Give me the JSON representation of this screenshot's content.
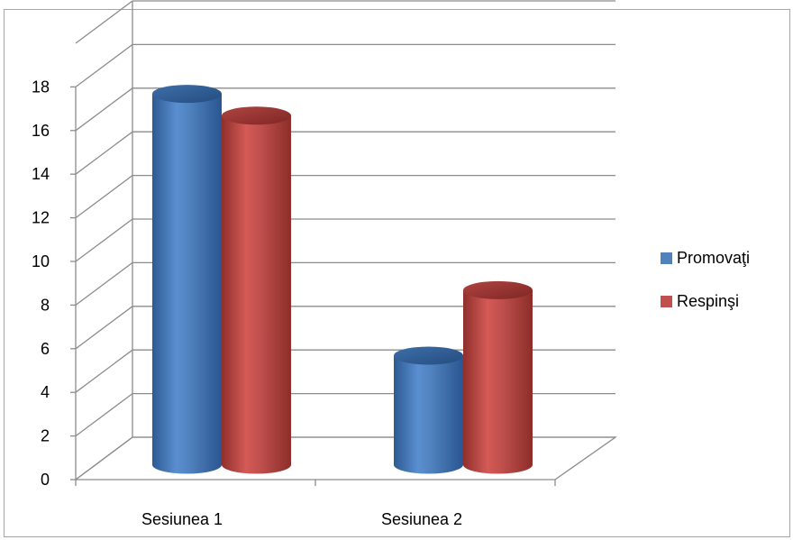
{
  "chart_data": {
    "type": "bar",
    "style": "3d-cylinder",
    "categories": [
      "Sesiunea 1",
      "Sesiunea 2"
    ],
    "series": [
      {
        "name": "Promovaţi",
        "values": [
          17,
          5
        ],
        "color": "#4f81bd"
      },
      {
        "name": "Respinşi",
        "values": [
          16,
          8
        ],
        "color": "#c0504d"
      }
    ],
    "title": "",
    "xlabel": "",
    "ylabel": "",
    "ylim": [
      0,
      18
    ],
    "yticks": [
      "0",
      "2",
      "4",
      "6",
      "8",
      "10",
      "12",
      "14",
      "16",
      "18"
    ],
    "grid": true,
    "legend_position": "right"
  }
}
